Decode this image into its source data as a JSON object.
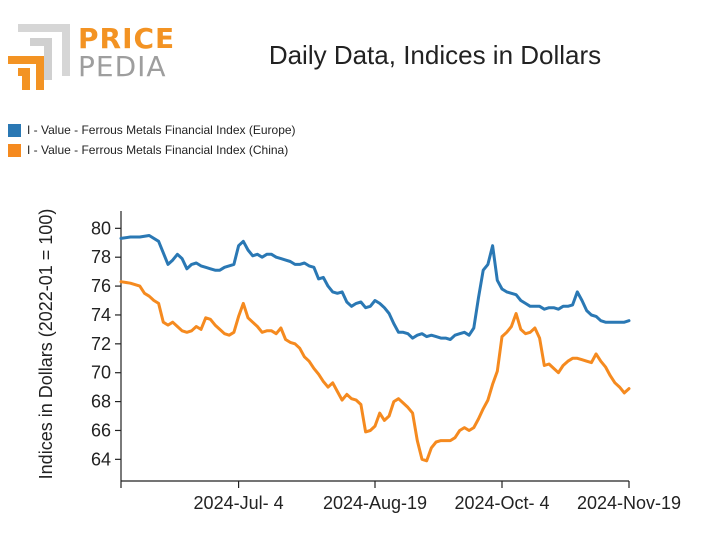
{
  "logo": {
    "line1": "PRICE",
    "line2": "PEDIA"
  },
  "colors": {
    "europe": "#2a78b4",
    "china": "#f58a1f",
    "logo_orange": "#f39323",
    "logo_grey": "#9e9e9e"
  },
  "chart_data": {
    "type": "line",
    "title": "Daily Data, Indices in Dollars",
    "xlabel": "",
    "ylabel": "Indices in Dollars (2022-01 = 100)",
    "ylim": [
      62.5,
      81.2
    ],
    "yticks": [
      64,
      66,
      68,
      70,
      72,
      74,
      76,
      78,
      80
    ],
    "ytick_labels": [
      "64",
      "66",
      "68",
      "70",
      "72",
      "74",
      "76",
      "78",
      "80"
    ],
    "xlim": [
      0,
      108
    ],
    "xticks": [
      25,
      54,
      81,
      108
    ],
    "xtick_labels": [
      "2024-Jul- 4",
      "2024-Aug-19",
      "2024-Oct- 4",
      "2024-Nov-19"
    ],
    "legend_position": "top-left",
    "series": [
      {
        "name": "I - Value - Ferrous Metals Financial Index (Europe)",
        "color": "#2a78b4",
        "x": [
          0,
          2,
          4,
          6,
          8,
          10,
          11,
          12,
          13,
          14,
          15,
          16,
          17,
          18,
          19,
          20,
          21,
          22,
          24,
          25,
          26,
          27,
          28,
          29,
          30,
          31,
          32,
          33,
          34,
          35,
          36,
          37,
          38,
          39,
          40,
          41,
          42,
          43,
          44,
          45,
          46,
          47,
          48,
          49,
          50,
          51,
          52,
          53,
          54,
          55,
          56,
          57,
          58,
          59,
          60,
          61,
          62,
          63,
          64,
          65,
          66,
          67,
          68,
          69,
          70,
          71,
          72,
          73,
          74,
          75,
          76,
          77,
          78,
          79,
          80,
          81,
          82,
          83,
          84,
          85,
          86,
          87,
          88,
          89,
          90,
          91,
          92,
          93,
          94,
          95,
          96,
          97,
          98,
          99,
          100,
          101,
          102,
          103,
          104,
          105,
          106,
          107,
          108
        ],
        "values": [
          79.3,
          79.4,
          79.4,
          79.5,
          79.1,
          77.5,
          77.8,
          78.2,
          77.9,
          77.2,
          77.5,
          77.6,
          77.4,
          77.3,
          77.2,
          77.1,
          77.1,
          77.3,
          77.5,
          78.8,
          79.1,
          78.5,
          78.1,
          78.2,
          78.0,
          78.2,
          78.2,
          78.0,
          77.9,
          77.8,
          77.7,
          77.5,
          77.5,
          77.6,
          77.4,
          77.3,
          76.5,
          76.6,
          76.0,
          75.6,
          75.5,
          75.6,
          74.9,
          74.6,
          74.8,
          74.9,
          74.5,
          74.6,
          75.0,
          74.8,
          74.5,
          74.1,
          73.4,
          72.8,
          72.8,
          72.7,
          72.4,
          72.6,
          72.7,
          72.5,
          72.6,
          72.5,
          72.4,
          72.4,
          72.3,
          72.6,
          72.7,
          72.8,
          72.6,
          73.1,
          75.2,
          77.1,
          77.5,
          78.8,
          76.4,
          75.8,
          75.6,
          75.5,
          75.4,
          75.0,
          74.8,
          74.6,
          74.6,
          74.6,
          74.4,
          74.5,
          74.5,
          74.4,
          74.6,
          74.6,
          74.7,
          75.6,
          75.0,
          74.3,
          74.0,
          73.9,
          73.6,
          73.5,
          73.5,
          73.5,
          73.5,
          73.5,
          73.6
        ]
      },
      {
        "name": "I - Value - Ferrous Metals Financial Index (China)",
        "color": "#f58a1f",
        "x": [
          0,
          2,
          4,
          5,
          6,
          7,
          8,
          9,
          10,
          11,
          12,
          13,
          14,
          15,
          16,
          17,
          18,
          19,
          20,
          21,
          22,
          23,
          24,
          25,
          26,
          27,
          28,
          29,
          30,
          31,
          32,
          33,
          34,
          35,
          36,
          37,
          38,
          39,
          40,
          41,
          42,
          43,
          44,
          45,
          46,
          47,
          48,
          49,
          50,
          51,
          52,
          53,
          54,
          55,
          56,
          57,
          58,
          59,
          60,
          61,
          62,
          63,
          64,
          65,
          66,
          67,
          68,
          69,
          70,
          71,
          72,
          73,
          74,
          75,
          76,
          77,
          78,
          79,
          80,
          81,
          82,
          83,
          84,
          85,
          86,
          87,
          88,
          89,
          90,
          91,
          92,
          93,
          94,
          95,
          96,
          97,
          98,
          99,
          100,
          101,
          102,
          103,
          104,
          105,
          106,
          107,
          108
        ],
        "values": [
          76.3,
          76.2,
          76.0,
          75.5,
          75.3,
          75.0,
          74.8,
          73.5,
          73.3,
          73.5,
          73.2,
          72.9,
          72.8,
          72.9,
          73.2,
          73.0,
          73.8,
          73.7,
          73.3,
          73.0,
          72.7,
          72.6,
          72.8,
          73.9,
          74.8,
          73.8,
          73.5,
          73.2,
          72.8,
          72.9,
          72.9,
          72.7,
          73.1,
          72.3,
          72.1,
          72.0,
          71.7,
          71.1,
          70.8,
          70.3,
          69.9,
          69.4,
          69.0,
          69.3,
          68.7,
          68.1,
          68.5,
          68.2,
          68.1,
          67.8,
          65.9,
          66.0,
          66.3,
          67.2,
          66.7,
          67.0,
          68.0,
          68.2,
          67.9,
          67.6,
          67.2,
          65.3,
          64.0,
          63.9,
          64.8,
          65.2,
          65.3,
          65.3,
          65.3,
          65.5,
          66.0,
          66.2,
          66.0,
          66.2,
          66.8,
          67.5,
          68.1,
          69.2,
          70.1,
          72.5,
          72.8,
          73.2,
          74.1,
          73.0,
          72.7,
          72.8,
          73.1,
          72.4,
          70.5,
          70.6,
          70.3,
          70.0,
          70.5,
          70.8,
          71.0,
          71.0,
          70.9,
          70.8,
          70.7,
          71.3,
          70.8,
          70.4,
          69.8,
          69.3,
          69.0,
          68.6,
          68.9
        ]
      }
    ]
  }
}
